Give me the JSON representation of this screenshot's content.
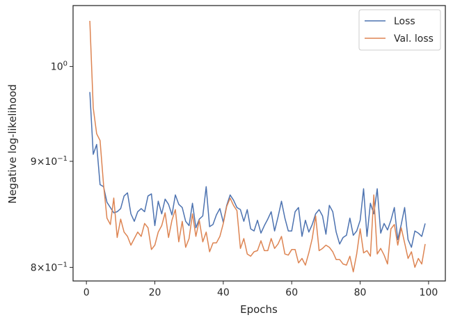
{
  "chart_data": {
    "type": "line",
    "xlabel": "Epochs",
    "ylabel": "Negative log-likelihood",
    "y_scale": "log",
    "xlim": [
      -3.9,
      104.9
    ],
    "ylim": [
      0.788,
      1.07
    ],
    "x_ticks": [
      {
        "value": 0,
        "label": "0"
      },
      {
        "value": 20,
        "label": "20"
      },
      {
        "value": 40,
        "label": "40"
      },
      {
        "value": 60,
        "label": "60"
      },
      {
        "value": 80,
        "label": "80"
      },
      {
        "value": 100,
        "label": "100"
      }
    ],
    "y_ticks": [
      {
        "value": 0.8,
        "base": "8",
        "mult": "×10",
        "exp": "−1"
      },
      {
        "value": 0.9,
        "base": "9",
        "mult": "×10",
        "exp": "−1"
      },
      {
        "value": 1.0,
        "base": "10",
        "mult": "",
        "exp": "0"
      }
    ],
    "legend_position": "top-right",
    "grid": false,
    "x": [
      1,
      2,
      3,
      4,
      5,
      6,
      7,
      8,
      9,
      10,
      11,
      12,
      13,
      14,
      15,
      16,
      17,
      18,
      19,
      20,
      21,
      22,
      23,
      24,
      25,
      26,
      27,
      28,
      29,
      30,
      31,
      32,
      33,
      34,
      35,
      36,
      37,
      38,
      39,
      40,
      41,
      42,
      43,
      44,
      45,
      46,
      47,
      48,
      49,
      50,
      51,
      52,
      53,
      54,
      55,
      56,
      57,
      58,
      59,
      60,
      61,
      62,
      63,
      64,
      65,
      66,
      67,
      68,
      69,
      70,
      71,
      72,
      73,
      74,
      75,
      76,
      77,
      78,
      79,
      80,
      81,
      82,
      83,
      84,
      85,
      86,
      87,
      88,
      89,
      90,
      91,
      92,
      93,
      94,
      95,
      96,
      97,
      98,
      99
    ],
    "series": [
      {
        "name": "Loss",
        "color": "#4c72b0",
        "values": [
          0.972,
          0.907,
          0.917,
          0.877,
          0.875,
          0.86,
          0.855,
          0.85,
          0.851,
          0.854,
          0.866,
          0.869,
          0.849,
          0.842,
          0.851,
          0.854,
          0.851,
          0.866,
          0.868,
          0.838,
          0.861,
          0.849,
          0.863,
          0.858,
          0.848,
          0.867,
          0.858,
          0.855,
          0.842,
          0.838,
          0.859,
          0.836,
          0.844,
          0.847,
          0.875,
          0.837,
          0.839,
          0.848,
          0.854,
          0.841,
          0.857,
          0.867,
          0.862,
          0.855,
          0.853,
          0.842,
          0.853,
          0.835,
          0.833,
          0.843,
          0.831,
          0.838,
          0.844,
          0.851,
          0.833,
          0.846,
          0.861,
          0.845,
          0.833,
          0.833,
          0.851,
          0.855,
          0.828,
          0.843,
          0.832,
          0.839,
          0.849,
          0.853,
          0.847,
          0.83,
          0.857,
          0.851,
          0.832,
          0.821,
          0.827,
          0.829,
          0.845,
          0.829,
          0.833,
          0.843,
          0.873,
          0.828,
          0.859,
          0.849,
          0.873,
          0.831,
          0.84,
          0.834,
          0.843,
          0.855,
          0.825,
          0.839,
          0.855,
          0.825,
          0.818,
          0.833,
          0.831,
          0.828,
          0.84
        ]
      },
      {
        "name": "Val. loss",
        "color": "#dd8452",
        "values": [
          1.052,
          0.955,
          0.928,
          0.921,
          0.877,
          0.845,
          0.839,
          0.864,
          0.827,
          0.844,
          0.832,
          0.828,
          0.82,
          0.826,
          0.832,
          0.828,
          0.84,
          0.836,
          0.816,
          0.82,
          0.832,
          0.838,
          0.85,
          0.827,
          0.843,
          0.853,
          0.823,
          0.842,
          0.818,
          0.826,
          0.849,
          0.828,
          0.843,
          0.823,
          0.832,
          0.814,
          0.822,
          0.822,
          0.828,
          0.84,
          0.856,
          0.864,
          0.857,
          0.852,
          0.817,
          0.826,
          0.812,
          0.81,
          0.814,
          0.815,
          0.824,
          0.815,
          0.815,
          0.826,
          0.817,
          0.821,
          0.828,
          0.812,
          0.811,
          0.816,
          0.816,
          0.804,
          0.808,
          0.802,
          0.813,
          0.826,
          0.847,
          0.815,
          0.817,
          0.82,
          0.818,
          0.814,
          0.807,
          0.807,
          0.803,
          0.802,
          0.81,
          0.796,
          0.812,
          0.835,
          0.813,
          0.815,
          0.81,
          0.867,
          0.812,
          0.817,
          0.811,
          0.803,
          0.835,
          0.839,
          0.82,
          0.836,
          0.822,
          0.808,
          0.814,
          0.8,
          0.808,
          0.803,
          0.821
        ]
      }
    ]
  }
}
